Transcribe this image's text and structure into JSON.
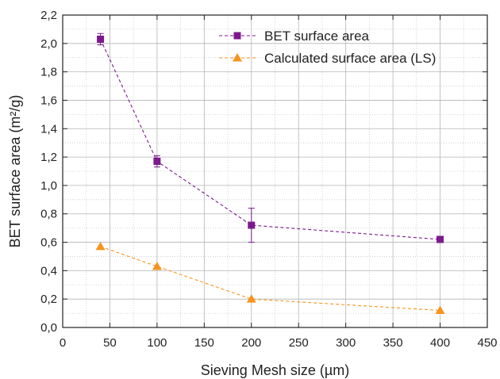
{
  "chart_data": {
    "type": "scatter",
    "xlabel": "Sieving Mesh size (µm)",
    "ylabel": "BET surface area (m²/g)",
    "xlim": [
      0,
      450
    ],
    "ylim": [
      0.0,
      2.2
    ],
    "x_ticks": [
      0,
      50,
      100,
      150,
      200,
      250,
      300,
      350,
      400,
      450
    ],
    "x_tick_labels": [
      "0",
      "50",
      "100",
      "150",
      "200",
      "250",
      "300",
      "350",
      "400",
      "450"
    ],
    "y_ticks": [
      0.0,
      0.2,
      0.4,
      0.6,
      0.8,
      1.0,
      1.2,
      1.4,
      1.6,
      1.8,
      2.0,
      2.2
    ],
    "y_tick_labels": [
      "0,0",
      "0,2",
      "0,4",
      "0,6",
      "0,8",
      "1,0",
      "1,2",
      "1,4",
      "1,6",
      "1,8",
      "2,0",
      "2,2"
    ],
    "grid": true,
    "minor_grid": true,
    "legend_position": "top-right",
    "series": [
      {
        "name": "BET surface area",
        "marker": "square",
        "color": "#7b1a8c",
        "line_style": "dashed",
        "x": [
          40,
          100,
          200,
          400
        ],
        "y": [
          2.03,
          1.17,
          0.72,
          0.62
        ],
        "error": [
          0.04,
          0.04,
          0.12,
          0.0
        ]
      },
      {
        "name": "Calculated surface area (LS)",
        "marker": "triangle",
        "color": "#f7931e",
        "line_style": "dashed",
        "x": [
          40,
          100,
          200,
          400
        ],
        "y": [
          0.57,
          0.43,
          0.2,
          0.12
        ],
        "error": [
          0,
          0,
          0,
          0
        ]
      }
    ]
  }
}
